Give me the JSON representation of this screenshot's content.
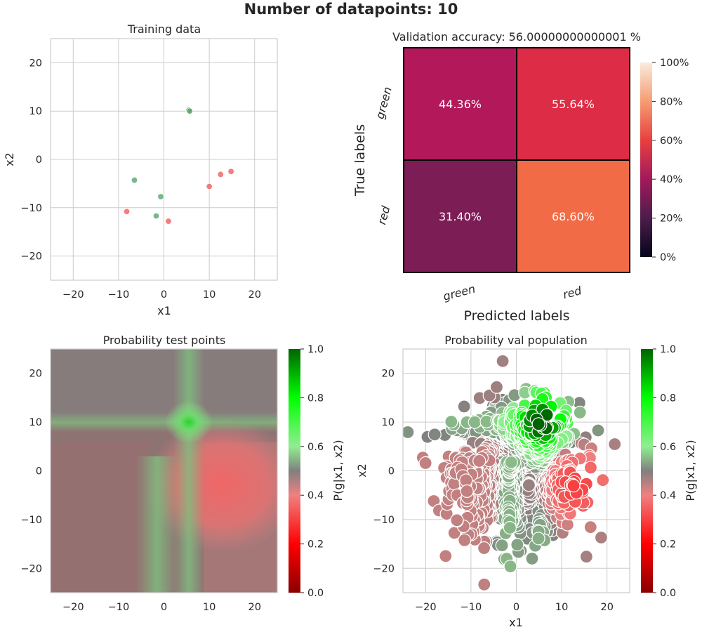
{
  "figure": {
    "suptitle": "Number of datapoints: 10"
  },
  "chart_data": [
    {
      "type": "scatter",
      "title": "Training data",
      "xlabel": "x1",
      "ylabel": "x2",
      "xlim": [
        -25,
        25
      ],
      "ylim": [
        -25,
        25
      ],
      "xticks": [
        -20,
        -10,
        0,
        10,
        20
      ],
      "yticks": [
        -20,
        -10,
        0,
        10,
        20
      ],
      "grid": true,
      "legend": "none",
      "series": [
        {
          "color": "#55a868",
          "points": [
            [
              5.5,
              10.2
            ],
            [
              5.7,
              10.0
            ],
            [
              -6.5,
              -4.3
            ],
            [
              -0.7,
              -7.7
            ],
            [
              -1.7,
              -11.7
            ]
          ]
        },
        {
          "color": "#f15e5e",
          "points": [
            [
              14.8,
              -2.5
            ],
            [
              12.5,
              -3.1
            ],
            [
              10.0,
              -5.6
            ],
            [
              -8.2,
              -10.8
            ],
            [
              1.0,
              -12.8
            ]
          ]
        }
      ]
    },
    {
      "type": "heatmap",
      "title": "Validation accuracy: 56.00000000000001 %",
      "xlabel": "Predicted labels",
      "ylabel": "True labels",
      "x_categories": [
        "green",
        "red"
      ],
      "y_categories": [
        "green",
        "red"
      ],
      "values": [
        [
          44.36,
          55.64
        ],
        [
          31.4,
          68.6
        ]
      ],
      "cell_labels": [
        [
          "44.36%",
          "55.64%"
        ],
        [
          "31.40%",
          "68.60%"
        ]
      ],
      "cell_colors": [
        [
          "#b3195a",
          "#dd2c45"
        ],
        [
          "#7d1d56",
          "#f06b46"
        ]
      ],
      "colorbar": {
        "ticks": [
          "0%",
          "20%",
          "40%",
          "60%",
          "80%",
          "100%"
        ],
        "range": [
          0,
          100
        ]
      }
    },
    {
      "type": "heatmap",
      "title": "Probability test points",
      "xlim": [
        -25,
        25
      ],
      "ylim": [
        -25,
        25
      ],
      "xticks": [
        -20,
        -10,
        0,
        10,
        20
      ],
      "yticks": [
        -20,
        -10,
        0,
        10,
        20
      ],
      "background_color": "#8f7272",
      "features": [
        {
          "kind": "green_hotspot",
          "center": [
            5.5,
            10
          ],
          "value": 0.95
        },
        {
          "kind": "green_band",
          "axis": "x",
          "at": 5.5,
          "value": 0.6
        },
        {
          "kind": "green_band",
          "axis": "y",
          "at": 10,
          "value": 0.6
        },
        {
          "kind": "green_band",
          "axis": "x",
          "at": -1.5,
          "value": 0.55
        },
        {
          "kind": "red_blob",
          "center": [
            13,
            -3
          ],
          "value": 0.3
        }
      ],
      "colorbar": {
        "label": "P(g|x1, x2)",
        "ticks": [
          "0.0",
          "0.2",
          "0.4",
          "0.6",
          "0.8",
          "1.0"
        ],
        "range": [
          0,
          1
        ]
      }
    },
    {
      "type": "scatter",
      "title": "Probability val population",
      "xlabel": "x1",
      "ylabel": "x2",
      "xlim": [
        -25,
        25
      ],
      "ylim": [
        -25,
        25
      ],
      "xticks": [
        -20,
        -10,
        0,
        10,
        20
      ],
      "yticks": [
        -20,
        -10,
        0,
        10,
        20
      ],
      "grid": true,
      "point_count": 1000,
      "distribution": {
        "center": [
          0,
          0
        ],
        "spread": 11
      },
      "color_by": "P(g|x1, x2)",
      "colorbar": {
        "label": "P(g|x1, x2)",
        "ticks": [
          "0.0",
          "0.2",
          "0.4",
          "0.6",
          "0.8",
          "1.0"
        ],
        "range": [
          0,
          1
        ]
      }
    }
  ]
}
